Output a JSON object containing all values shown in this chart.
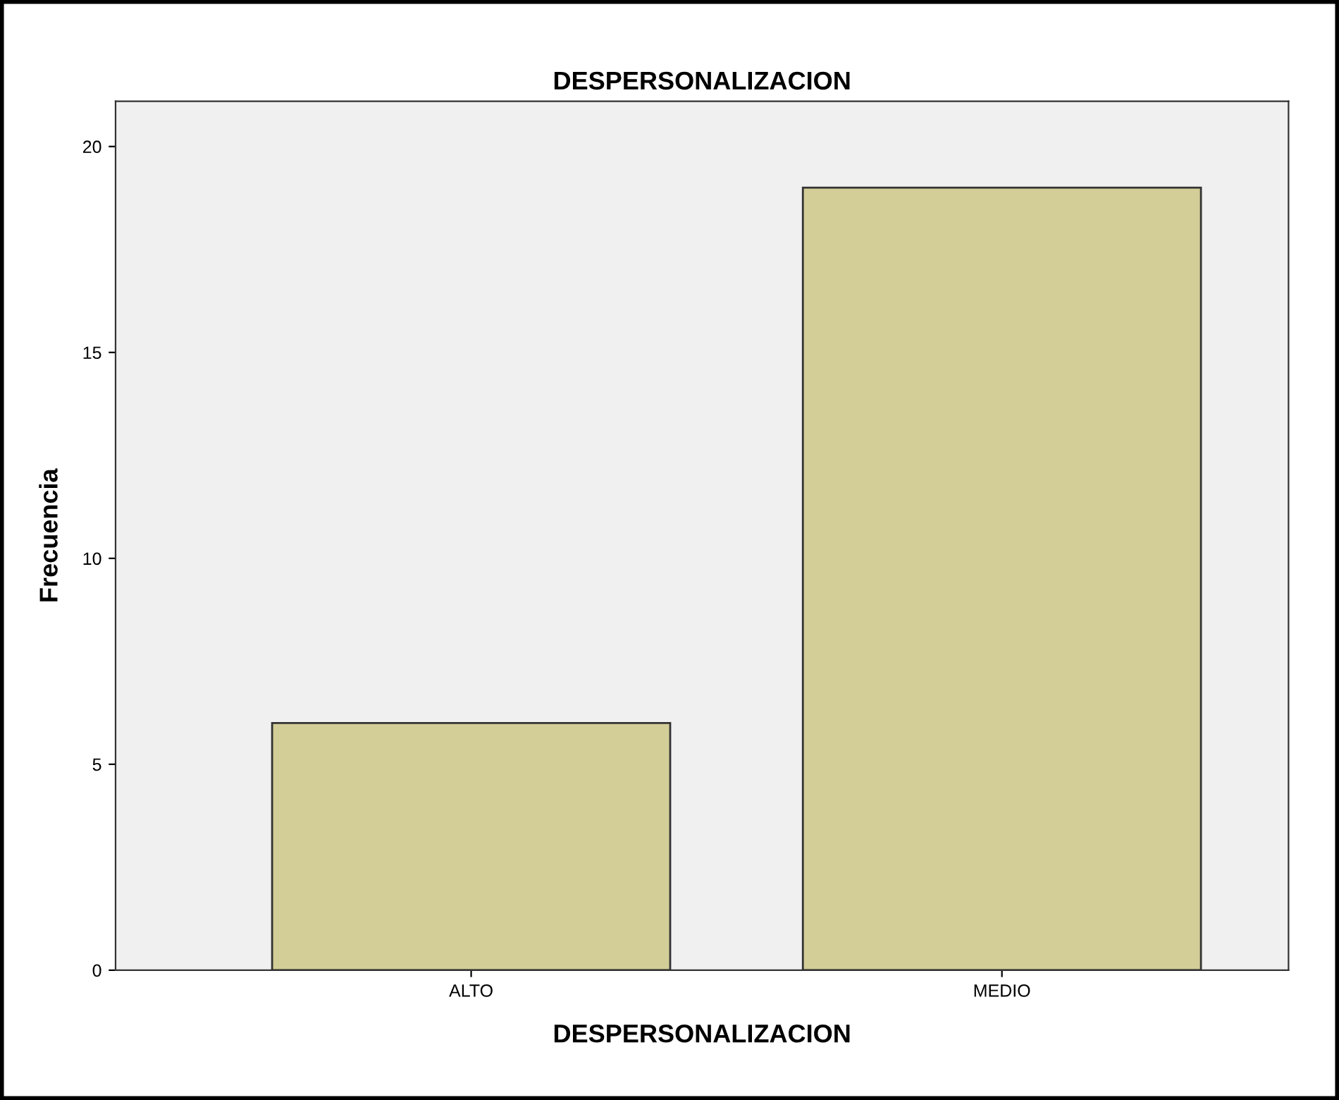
{
  "chart_data": {
    "type": "bar",
    "title": "DESPERSONALIZACION",
    "xlabel": "DESPERSONALIZACION",
    "ylabel": "Frecuencia",
    "categories": [
      "ALTO",
      "MEDIO"
    ],
    "values": [
      6,
      19
    ],
    "color": "#d3ce98",
    "ylim": [
      0,
      21.1
    ],
    "yticks": [
      0,
      5,
      10,
      15,
      20
    ],
    "grid": false,
    "legend": false
  }
}
